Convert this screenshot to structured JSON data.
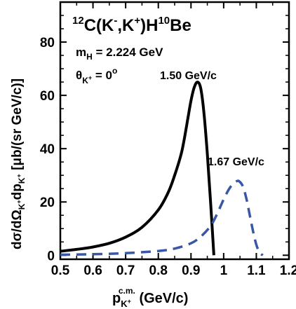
{
  "chart_data": {
    "type": "line",
    "title": {
      "sup12": "12",
      "main": "C(K",
      "supminus": "-",
      "mid": ",K",
      "supplus": "+",
      "end": ")H",
      "sup10": "10",
      "tail": "Be"
    },
    "annotations": {
      "mass": {
        "m": "m",
        "sub": "H",
        "rest": " = 2.224 GeV"
      },
      "angle": {
        "theta": "θ",
        "subK": "K",
        "subKsup": "+",
        "rest": " = 0",
        "deg": "o"
      },
      "label_150": "1.50 GeV/c",
      "label_167": "1.67 GeV/c"
    },
    "xlabel": {
      "p": "p",
      "sub": "K",
      "subsup": "+",
      "sup": "c.m.",
      "rest": " (GeV/c)"
    },
    "ylabel": "dσ/dΩK+dpK+ [μb/(sr GeV/c)]",
    "ylabel_parts": {
      "a": "dσ/dΩ",
      "b": "K",
      "c": "+",
      "d": "dp",
      "e": "K",
      "f": "+",
      "g": " [μb/(sr GeV/c)]"
    },
    "xlim": [
      0.5,
      1.2
    ],
    "ylim": [
      -1.5,
      95
    ],
    "xticks": [
      0.5,
      0.6,
      0.7,
      0.8,
      0.9,
      1.0,
      1.1,
      1.2
    ],
    "xtick_labels": [
      "0.5",
      "0.6",
      "0.7",
      "0.8",
      "0.9",
      "1",
      "1.1",
      "1.2"
    ],
    "yticks": [
      0,
      20,
      40,
      60,
      80
    ],
    "ytick_labels": [
      "0",
      "20",
      "40",
      "60",
      "80"
    ],
    "series": [
      {
        "style": "solid",
        "color": "#000000",
        "x": [
          0.5,
          0.55,
          0.6,
          0.65,
          0.7,
          0.75,
          0.8,
          0.83,
          0.85,
          0.87,
          0.88,
          0.89,
          0.9,
          0.91,
          0.92,
          0.93,
          0.94,
          0.95,
          0.96,
          0.97
        ],
        "y": [
          1.5,
          2.2,
          3.1,
          4.5,
          6.8,
          10.5,
          17.0,
          23.5,
          30.0,
          38.0,
          44.0,
          51.0,
          58.0,
          63.0,
          65.0,
          62.5,
          53.0,
          38.0,
          20.0,
          0.0
        ]
      },
      {
        "style": "dashed",
        "color": "#3a57a6",
        "x": [
          0.5,
          0.6,
          0.7,
          0.8,
          0.85,
          0.9,
          0.93,
          0.96,
          0.98,
          1.0,
          1.02,
          1.04,
          1.05,
          1.06,
          1.07,
          1.08,
          1.09,
          1.1,
          1.11,
          1.12
        ],
        "y": [
          0.2,
          0.4,
          0.8,
          1.6,
          2.5,
          4.5,
          7.0,
          11.0,
          15.5,
          21.0,
          25.5,
          27.8,
          27.5,
          25.5,
          21.0,
          15.0,
          9.0,
          4.0,
          1.0,
          0.0
        ]
      }
    ]
  }
}
